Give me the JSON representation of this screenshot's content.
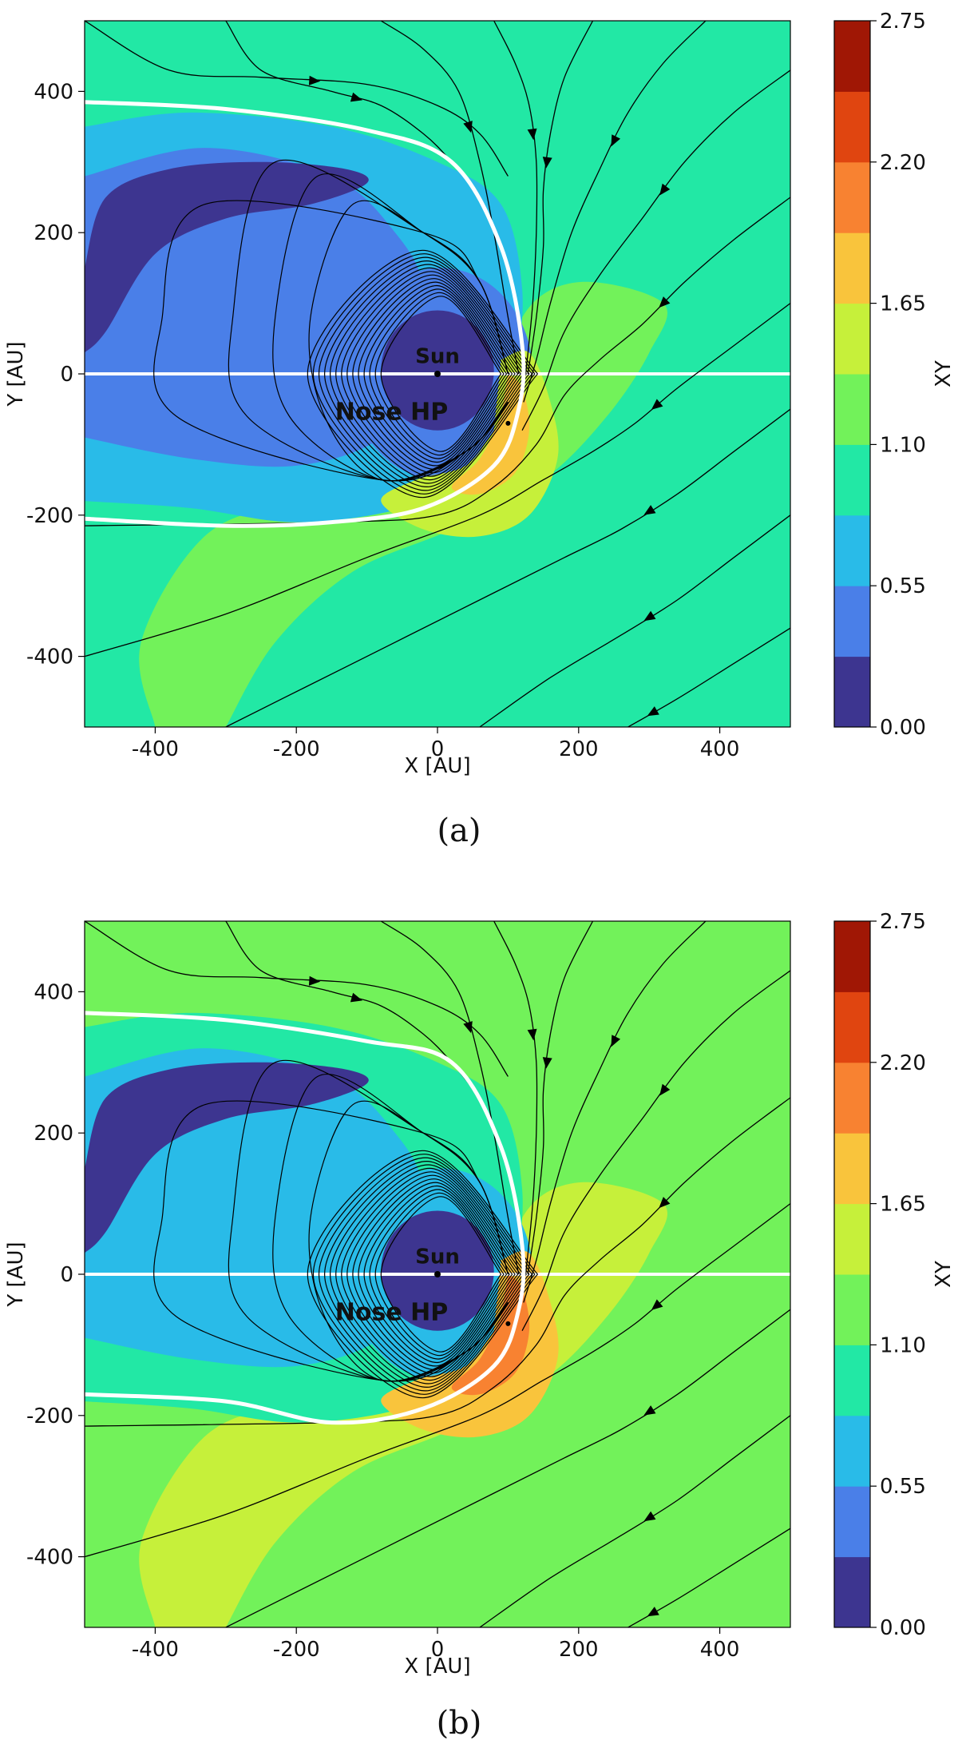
{
  "chart_data": [
    {
      "type": "heatmap",
      "panel_label": "(a)",
      "xlabel": "X [AU]",
      "ylabel": "Y [AU]",
      "xlim": [
        -500,
        500
      ],
      "ylim": [
        -500,
        500
      ],
      "xticks": [
        -400,
        -200,
        0,
        200,
        400
      ],
      "yticks": [
        -400,
        -200,
        0,
        200,
        400
      ],
      "colorbar": {
        "label": "XY",
        "min": 0.0,
        "max": 2.75,
        "tick_labels": [
          "0.00",
          "0.55",
          "1.10",
          "1.65",
          "2.20",
          "2.75"
        ],
        "colors": [
          "#3d3590",
          "#4a7fe8",
          "#29bbe8",
          "#22e8a5",
          "#72f25a",
          "#c6f03a",
          "#f9c43c",
          "#f88231",
          "#e04510",
          "#a01705"
        ]
      },
      "field_levels": {
        "outer": 3,
        "ring": 2,
        "crescent": 1,
        "core": 0,
        "left_band": 0,
        "downstream": 4,
        "bump": 5,
        "nose": 6
      },
      "annotations": [
        {
          "text": "Sun",
          "x": 0,
          "y": 15
        },
        {
          "text": "Nose HP",
          "x": -65,
          "y": -65
        }
      ],
      "heliopause": {
        "nose_x": 120,
        "north_y_at_tail": 385,
        "south_y_at_tail": -205
      },
      "sun": {
        "x": 0,
        "y": 0
      }
    },
    {
      "type": "heatmap",
      "panel_label": "(b)",
      "xlabel": "X [AU]",
      "ylabel": "Y [AU]",
      "xlim": [
        -500,
        500
      ],
      "ylim": [
        -500,
        500
      ],
      "xticks": [
        -400,
        -200,
        0,
        200,
        400
      ],
      "yticks": [
        -400,
        -200,
        0,
        200,
        400
      ],
      "colorbar": {
        "label": "XY",
        "min": 0.0,
        "max": 2.75,
        "tick_labels": [
          "0.00",
          "0.55",
          "1.10",
          "1.65",
          "2.20",
          "2.75"
        ],
        "colors": [
          "#3d3590",
          "#4a7fe8",
          "#29bbe8",
          "#22e8a5",
          "#72f25a",
          "#c6f03a",
          "#f9c43c",
          "#f88231",
          "#e04510",
          "#a01705"
        ]
      },
      "field_levels": {
        "outer": 4,
        "ring": 3,
        "crescent": 2,
        "core": 0,
        "left_band": 0,
        "downstream": 5,
        "bump": 6,
        "nose": 7
      },
      "annotations": [
        {
          "text": "Sun",
          "x": 0,
          "y": 15
        },
        {
          "text": "Nose HP",
          "x": -65,
          "y": -65
        }
      ],
      "heliopause": {
        "nose_x": 120,
        "north_y_at_tail": 370,
        "south_y_at_tail": -170
      },
      "sun": {
        "x": 0,
        "y": 0
      }
    }
  ]
}
